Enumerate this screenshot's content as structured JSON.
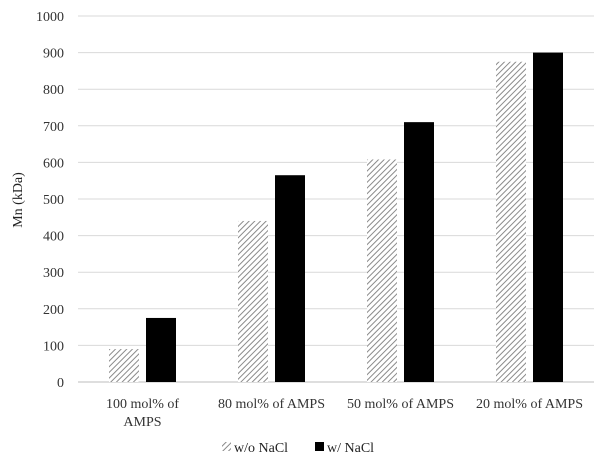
{
  "chart_data": {
    "type": "bar",
    "title": "",
    "xlabel": "",
    "ylabel": "Mn (kDa)",
    "ylim": [
      0,
      1000
    ],
    "yticks": [
      0,
      100,
      200,
      300,
      400,
      500,
      600,
      700,
      800,
      900,
      1000
    ],
    "grid": true,
    "legend_position": "bottom",
    "categories": [
      [
        "100 mol% of",
        "AMPS"
      ],
      [
        "80 mol% of AMPS"
      ],
      [
        "50 mol% of AMPS"
      ],
      [
        "20 mol% of AMPS"
      ]
    ],
    "series": [
      {
        "name": "w/o NaCl",
        "values": [
          90,
          440,
          608,
          875
        ],
        "color": "#9e9e9e",
        "pattern": "diagonal-hatch"
      },
      {
        "name": "w/ NaCl",
        "values": [
          175,
          565,
          710,
          900
        ],
        "color": "#000000",
        "pattern": "solid"
      }
    ]
  }
}
